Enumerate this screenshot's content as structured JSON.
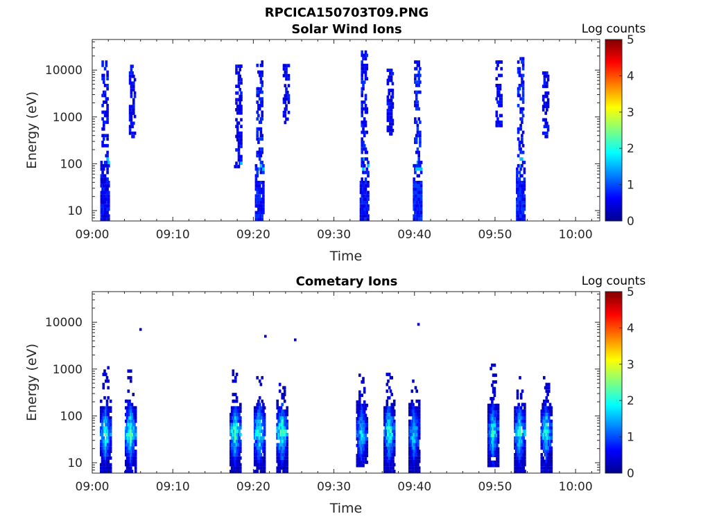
{
  "figure_title": "RPCICA150703T09.PNG",
  "chart_data": [
    {
      "type": "heatmap",
      "title": "Solar Wind Ions",
      "xlabel": "Time",
      "ylabel": "Energy (eV)",
      "x_ticks": [
        "09:00",
        "09:10",
        "09:20",
        "09:30",
        "09:40",
        "09:50",
        "10:00"
      ],
      "xlim": [
        "09:00",
        "10:03"
      ],
      "y_scale": "log",
      "y_ticks": [
        10,
        100,
        1000,
        10000
      ],
      "y_tick_labels": [
        "10",
        "100",
        "1000",
        "10000"
      ],
      "ylim": [
        6,
        45000
      ],
      "colorbar": {
        "label": "Log counts",
        "range": [
          0,
          5
        ],
        "ticks": [
          0,
          1,
          2,
          3,
          4,
          5
        ],
        "colormap": "jet"
      },
      "bursts": [
        {
          "center": "09:01.6",
          "e_min": 6,
          "e_max": 14000,
          "level": 0.35
        },
        {
          "center": "09:05.0",
          "e_min": 350,
          "e_max": 13000,
          "level": 0.3
        },
        {
          "center": "09:18.2",
          "e_min": 80,
          "e_max": 13000,
          "level": 0.3
        },
        {
          "center": "09:20.8",
          "e_min": 6,
          "e_max": 16000,
          "level": 0.45
        },
        {
          "center": "09:24.1",
          "e_min": 700,
          "e_max": 12000,
          "level": 0.3
        },
        {
          "center": "09:33.8",
          "e_min": 6,
          "e_max": 26000,
          "level": 0.4
        },
        {
          "center": "09:37.0",
          "e_min": 400,
          "e_max": 11000,
          "level": 0.3
        },
        {
          "center": "09:40.4",
          "e_min": 6,
          "e_max": 14000,
          "level": 0.45
        },
        {
          "center": "09:50.5",
          "e_min": 600,
          "e_max": 14000,
          "level": 0.3
        },
        {
          "center": "09:53.2",
          "e_min": 6,
          "e_max": 17000,
          "level": 0.45
        },
        {
          "center": "09:56.3",
          "e_min": 350,
          "e_max": 9000,
          "level": 0.3
        }
      ]
    },
    {
      "type": "heatmap",
      "title": "Cometary Ions",
      "xlabel": "Time",
      "ylabel": "Energy (eV)",
      "x_ticks": [
        "09:00",
        "09:10",
        "09:20",
        "09:30",
        "09:40",
        "09:50",
        "10:00"
      ],
      "xlim": [
        "09:00",
        "10:03"
      ],
      "y_scale": "log",
      "y_ticks": [
        10,
        100,
        1000,
        10000
      ],
      "y_tick_labels": [
        "10",
        "100",
        "1000",
        "10000"
      ],
      "ylim": [
        6,
        45000
      ],
      "colorbar": {
        "label": "Log counts",
        "range": [
          0,
          5
        ],
        "ticks": [
          0,
          1,
          2,
          3,
          4,
          5
        ],
        "colormap": "jet"
      },
      "bursts": [
        {
          "center": "09:01.7",
          "e_min": 6,
          "e_max": 1000,
          "level": 2.0
        },
        {
          "center": "09:04.8",
          "e_min": 6,
          "e_max": 900,
          "level": 2.4
        },
        {
          "center": "09:17.8",
          "e_min": 6,
          "e_max": 1100,
          "level": 2.2
        },
        {
          "center": "09:20.8",
          "e_min": 6,
          "e_max": 700,
          "level": 2.2
        },
        {
          "center": "09:23.6",
          "e_min": 6,
          "e_max": 600,
          "level": 2.3
        },
        {
          "center": "09:33.5",
          "e_min": 8,
          "e_max": 700,
          "level": 1.8
        },
        {
          "center": "09:36.9",
          "e_min": 6,
          "e_max": 800,
          "level": 2.1
        },
        {
          "center": "09:40.0",
          "e_min": 6,
          "e_max": 600,
          "level": 1.8
        },
        {
          "center": "09:49.8",
          "e_min": 8,
          "e_max": 1300,
          "level": 2.0
        },
        {
          "center": "09:53.1",
          "e_min": 6,
          "e_max": 800,
          "level": 2.1
        },
        {
          "center": "09:56.4",
          "e_min": 6,
          "e_max": 700,
          "level": 2.0
        }
      ],
      "outliers": [
        {
          "time": "09:06.0",
          "energy": 7000,
          "level": 0.3
        },
        {
          "time": "09:21.5",
          "energy": 5000,
          "level": 0.3
        },
        {
          "time": "09:25.2",
          "energy": 4200,
          "level": 0.3
        },
        {
          "time": "09:40.5",
          "energy": 9000,
          "level": 0.3
        }
      ]
    }
  ]
}
